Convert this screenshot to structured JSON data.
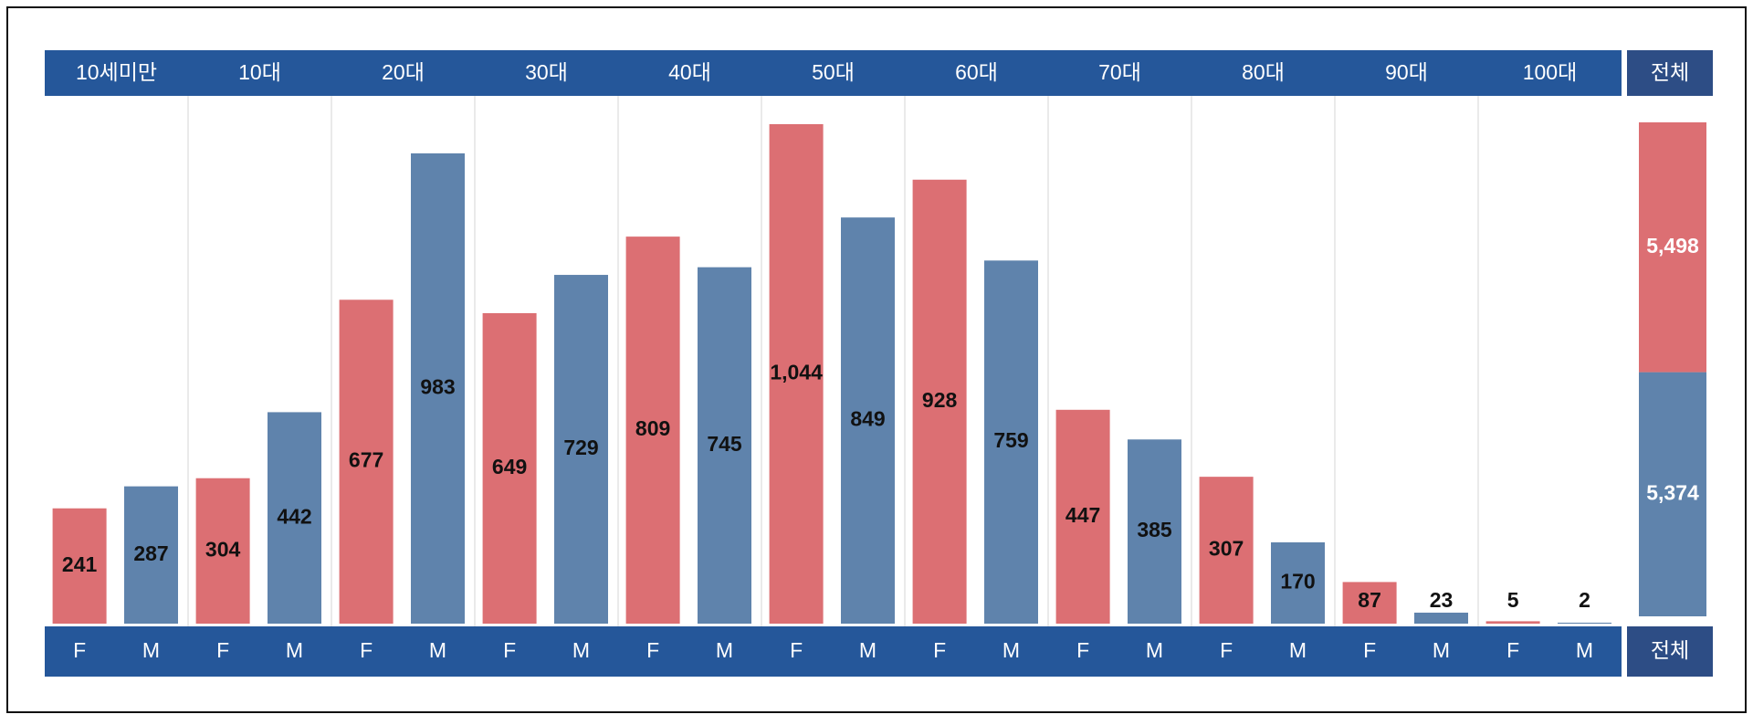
{
  "chart_data": {
    "type": "bar",
    "categories": [
      "10세미만",
      "10대",
      "20대",
      "30대",
      "40대",
      "50대",
      "60대",
      "70대",
      "80대",
      "90대",
      "100대"
    ],
    "series": [
      {
        "name": "F",
        "color": "#dc6f73",
        "values": [
          241,
          304,
          677,
          649,
          809,
          1044,
          928,
          447,
          307,
          87,
          5
        ],
        "value_labels": [
          "241",
          "304",
          "677",
          "649",
          "809",
          "1,044",
          "928",
          "447",
          "307",
          "87",
          "5"
        ]
      },
      {
        "name": "M",
        "color": "#5f83ac",
        "values": [
          287,
          442,
          983,
          729,
          745,
          849,
          759,
          385,
          170,
          23,
          2
        ],
        "value_labels": [
          "287",
          "442",
          "983",
          "729",
          "745",
          "849",
          "759",
          "385",
          "170",
          "23",
          "2"
        ]
      }
    ],
    "total_label": "전체",
    "total": {
      "values": [
        5498,
        5374
      ],
      "value_labels": [
        "5,498",
        "5,374"
      ]
    }
  }
}
